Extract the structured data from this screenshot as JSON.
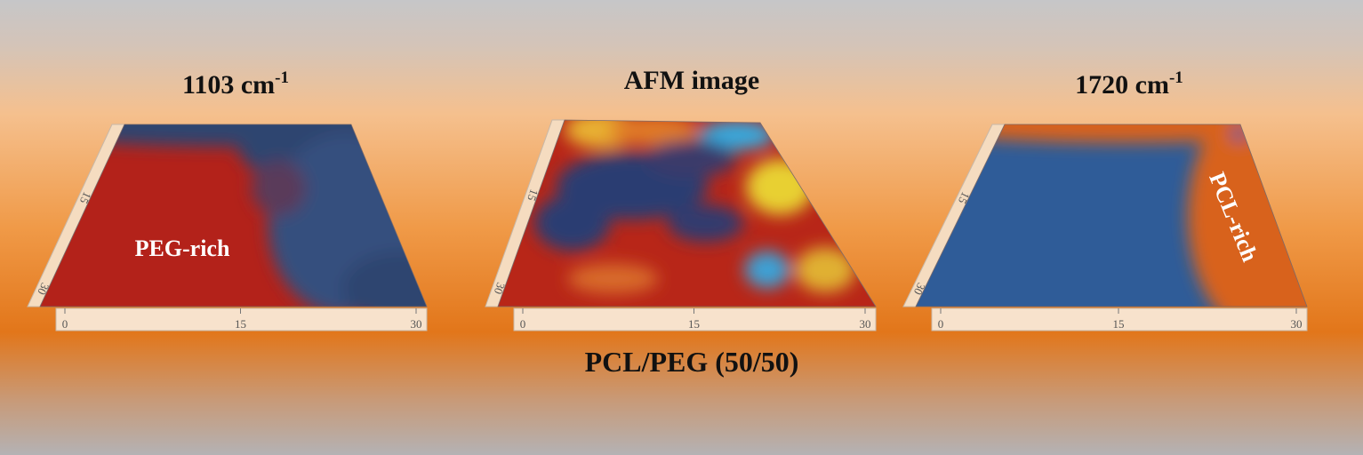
{
  "panels": [
    {
      "title": {
        "text": "1103 cm",
        "sup": "-1"
      },
      "x_ticks": [
        "0",
        "15",
        "30"
      ],
      "y_ticks": [
        "15",
        "30"
      ],
      "region_label": "PEG-rich"
    },
    {
      "title": {
        "text": "AFM image"
      },
      "x_ticks": [
        "0",
        "15",
        "30"
      ],
      "y_ticks": [
        "15",
        "30"
      ]
    },
    {
      "title": {
        "text": "1720 cm",
        "sup": "-1"
      },
      "x_ticks": [
        "0",
        "15",
        "30"
      ],
      "y_ticks": [
        "15",
        "30"
      ],
      "region_label": "PCL-rich"
    }
  ],
  "caption": "PCL/PEG (50/50)"
}
